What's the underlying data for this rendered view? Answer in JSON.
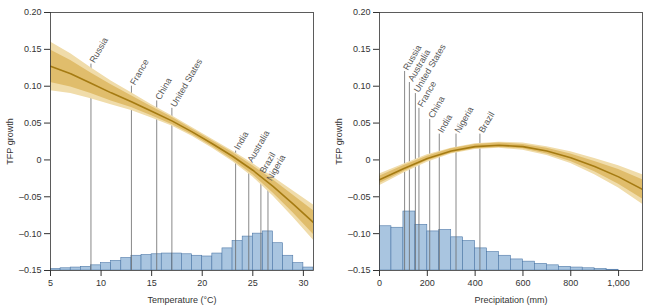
{
  "chart_data": [
    {
      "type": "line",
      "x_label": "Temperature (°C)",
      "y_label": "TFP growth",
      "xlim": [
        5,
        31
      ],
      "xticks": [
        5,
        10,
        15,
        20,
        25,
        30
      ],
      "ylim": [
        -0.15,
        0.2
      ],
      "yticks": [
        {
          "value": -0.15,
          "label": "–0.15"
        },
        {
          "value": -0.1,
          "label": "–0.10"
        },
        {
          "value": -0.05,
          "label": "–0.05"
        },
        0,
        0.05,
        {
          "value": 0.1,
          "label": "0.10"
        },
        0.15,
        {
          "value": 0.2,
          "label": "0.20"
        }
      ],
      "x": [
        5,
        7,
        9,
        11,
        13,
        15,
        17,
        19,
        21,
        23,
        25,
        27,
        29,
        31
      ],
      "series": [
        {
          "type": "area",
          "color": "#f0dcaa",
          "lower": [
            0.094,
            0.09,
            0.083,
            0.075,
            0.067,
            0.057,
            0.046,
            0.032,
            0.016,
            -0.002,
            -0.023,
            -0.049,
            -0.078,
            -0.109
          ],
          "upper": [
            0.16,
            0.144,
            0.125,
            0.107,
            0.091,
            0.075,
            0.06,
            0.044,
            0.028,
            0.012,
            -0.005,
            -0.023,
            -0.042,
            -0.061
          ]
        },
        {
          "type": "area",
          "color": "#e0bd6c",
          "lower": [
            0.105,
            0.099,
            0.09,
            0.08,
            0.071,
            0.06,
            0.048,
            0.034,
            0.018,
            0.0,
            -0.02,
            -0.045,
            -0.072,
            -0.101
          ],
          "upper": [
            0.149,
            0.135,
            0.118,
            0.102,
            0.087,
            0.072,
            0.058,
            0.042,
            0.026,
            0.01,
            -0.008,
            -0.027,
            -0.048,
            -0.069
          ]
        },
        {
          "type": "line",
          "color": "#a57b12",
          "values": [
            0.127,
            0.117,
            0.104,
            0.091,
            0.079,
            0.066,
            0.053,
            0.038,
            0.022,
            0.005,
            -0.014,
            -0.036,
            -0.06,
            -0.085
          ]
        }
      ],
      "histogram": {
        "type": "bar",
        "color": "#a9c5e0",
        "bins": [
          5,
          6,
          7,
          8,
          9,
          10,
          11,
          12,
          13,
          14,
          15,
          16,
          17,
          18,
          19,
          20,
          21,
          22,
          23,
          24,
          25,
          26,
          27,
          28,
          29,
          30,
          31
        ],
        "values": [
          -0.148,
          -0.147,
          -0.146,
          -0.145,
          -0.143,
          -0.14,
          -0.137,
          -0.133,
          -0.13,
          -0.129,
          -0.128,
          -0.127,
          -0.127,
          -0.128,
          -0.13,
          -0.131,
          -0.127,
          -0.12,
          -0.11,
          -0.104,
          -0.1,
          -0.097,
          -0.113,
          -0.13,
          -0.14,
          -0.146
        ]
      },
      "annotations": [
        {
          "label": "Russia",
          "x": 9,
          "y": 0.13
        },
        {
          "label": "France",
          "x": 13,
          "y": 0.1
        },
        {
          "label": "China",
          "x": 15.5,
          "y": 0.08
        },
        {
          "label": "United States",
          "x": 17,
          "y": 0.07
        },
        {
          "label": "India",
          "x": 23.3,
          "y": 0.012
        },
        {
          "label": "Australia",
          "x": 24.6,
          "y": -0.005
        },
        {
          "label": "Brazil",
          "x": 25.8,
          "y": -0.02
        },
        {
          "label": "Nigeria",
          "x": 26.5,
          "y": -0.03
        }
      ]
    },
    {
      "type": "line",
      "x_label": "Precipitation (mm)",
      "y_label": "TFP growth",
      "xlim": [
        0,
        1100
      ],
      "xticks": [
        0,
        200,
        400,
        600,
        800,
        {
          "value": 1000,
          "label": "1,000"
        }
      ],
      "ylim": [
        -0.15,
        0.2
      ],
      "yticks": [
        {
          "value": -0.15,
          "label": "–0.15"
        },
        {
          "value": -0.1,
          "label": "–0.10"
        },
        {
          "value": -0.05,
          "label": "–0.05"
        },
        0,
        0.05,
        {
          "value": 0.1,
          "label": "0.10"
        },
        0.15,
        {
          "value": 0.2,
          "label": "0.20"
        }
      ],
      "x": [
        0,
        100,
        200,
        300,
        400,
        500,
        600,
        700,
        800,
        900,
        1000,
        1100
      ],
      "series": [
        {
          "type": "area",
          "color": "#f0dcaa",
          "lower": [
            -0.035,
            -0.018,
            -0.003,
            0.008,
            0.014,
            0.016,
            0.013,
            0.006,
            -0.005,
            -0.02,
            -0.038,
            -0.06
          ],
          "upper": [
            -0.019,
            -0.006,
            0.007,
            0.016,
            0.022,
            0.024,
            0.023,
            0.018,
            0.011,
            0.002,
            -0.008,
            -0.02
          ]
        },
        {
          "type": "area",
          "color": "#e0bd6c",
          "lower": [
            -0.032,
            -0.016,
            -0.001,
            0.009,
            0.015,
            0.017,
            0.015,
            0.008,
            -0.002,
            -0.016,
            -0.033,
            -0.053
          ],
          "upper": [
            -0.022,
            -0.008,
            0.005,
            0.015,
            0.021,
            0.023,
            0.021,
            0.016,
            0.008,
            -0.002,
            -0.013,
            -0.027
          ]
        },
        {
          "type": "line",
          "color": "#a57b12",
          "values": [
            -0.027,
            -0.012,
            0.002,
            0.012,
            0.018,
            0.02,
            0.018,
            0.012,
            0.003,
            -0.009,
            -0.023,
            -0.04
          ]
        }
      ],
      "histogram": {
        "type": "bar",
        "color": "#a9c5e0",
        "bins": [
          0,
          50,
          100,
          150,
          200,
          250,
          300,
          350,
          400,
          450,
          500,
          550,
          600,
          650,
          700,
          750,
          800,
          850,
          900,
          950,
          1000
        ],
        "values": [
          -0.09,
          -0.092,
          -0.07,
          -0.088,
          -0.097,
          -0.095,
          -0.105,
          -0.11,
          -0.12,
          -0.125,
          -0.13,
          -0.135,
          -0.138,
          -0.141,
          -0.143,
          -0.145,
          -0.146,
          -0.147,
          -0.148,
          -0.149
        ]
      },
      "annotations": [
        {
          "label": "Russia",
          "x": 105,
          "y": 0.12
        },
        {
          "label": "Australia",
          "x": 125,
          "y": 0.105
        },
        {
          "label": "United States",
          "x": 150,
          "y": 0.09
        },
        {
          "label": "France",
          "x": 165,
          "y": 0.07
        },
        {
          "label": "China",
          "x": 210,
          "y": 0.055
        },
        {
          "label": "India",
          "x": 250,
          "y": 0.035
        },
        {
          "label": "Nigeria",
          "x": 320,
          "y": 0.035
        },
        {
          "label": "Brazil",
          "x": 420,
          "y": 0.035
        }
      ]
    }
  ]
}
